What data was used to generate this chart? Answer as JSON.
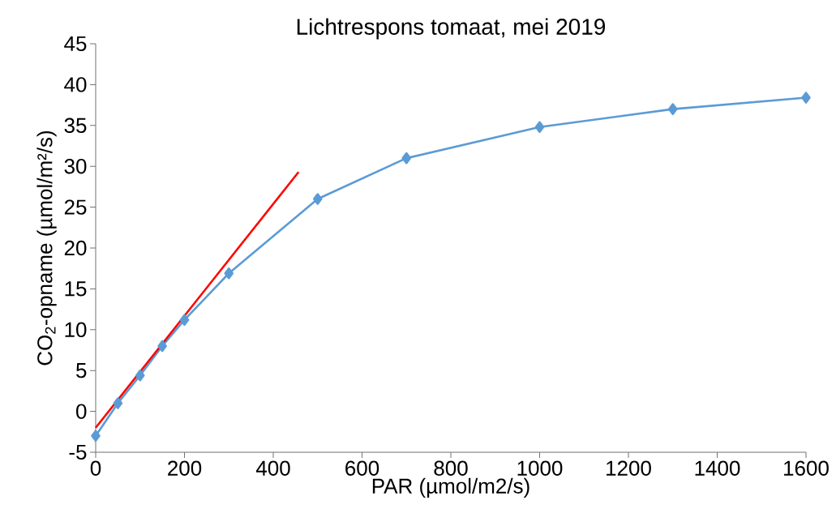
{
  "chart_data": {
    "type": "line",
    "title": "Lichtrespons tomaat, mei 2019",
    "xlabel": "PAR (µmol/m2/s)",
    "ylabel": "CO$_{2}$-opname (µmol/m²/s)",
    "x": [
      0,
      50,
      100,
      150,
      200,
      300,
      500,
      700,
      1000,
      1300,
      1600
    ],
    "series": [
      {
        "color": "#5b9bd5",
        "marker": "diamond",
        "values": [
          -3.0,
          1.0,
          4.4,
          8.0,
          11.2,
          16.9,
          26.0,
          31.0,
          34.8,
          37.0,
          38.4
        ]
      },
      {
        "color": "#ff0000",
        "marker": "none",
        "x": [
          0,
          457
        ],
        "values": [
          -2.0,
          29.3
        ]
      }
    ],
    "xlim": [
      0,
      1600
    ],
    "ylim": [
      -5,
      45
    ],
    "xticks": [
      0,
      200,
      400,
      600,
      800,
      1000,
      1200,
      1400,
      1600
    ],
    "yticks": [
      -5,
      0,
      5,
      10,
      15,
      20,
      25,
      30,
      35,
      40,
      45
    ],
    "grid": false
  }
}
